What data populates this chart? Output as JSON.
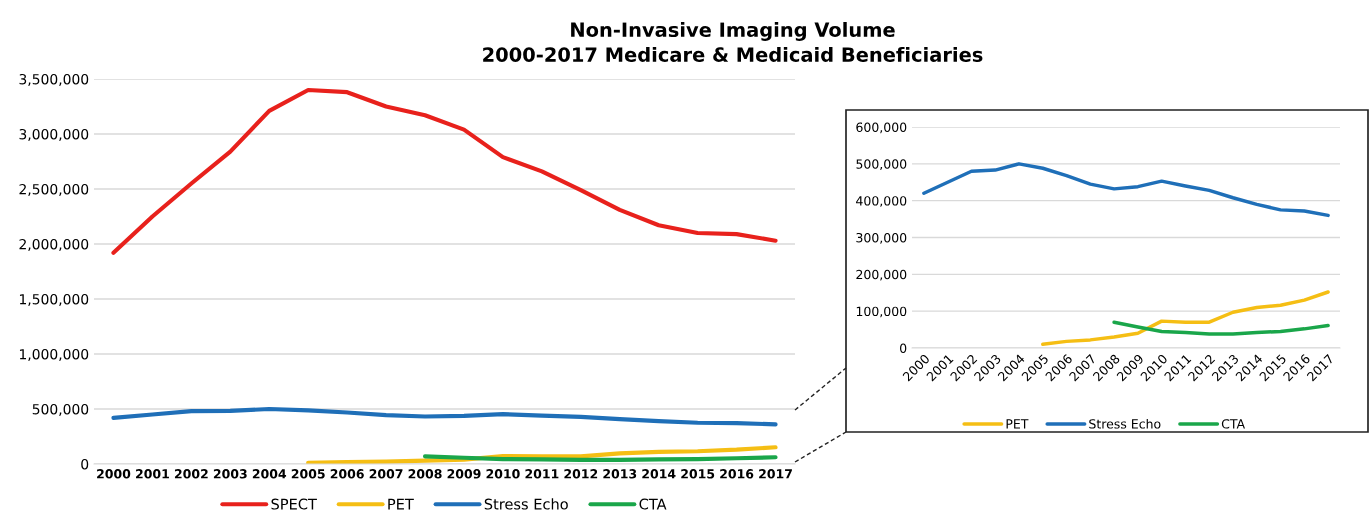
{
  "chart_data": [
    {
      "type": "line",
      "title": "Non-Invasive Imaging Volume\n2000-2017 Medicare & Medicaid Beneficiaries",
      "categories": [
        "2000",
        "2001",
        "2002",
        "2003",
        "2004",
        "2005",
        "2006",
        "2007",
        "2008",
        "2009",
        "2010",
        "2011",
        "2012",
        "2013",
        "2014",
        "2015",
        "2016",
        "2017"
      ],
      "series": [
        {
          "name": "SPECT",
          "color": "#e8211c",
          "values": [
            1920000,
            2250000,
            2550000,
            2840000,
            3210000,
            3400000,
            3380000,
            3250000,
            3170000,
            3040000,
            2790000,
            2660000,
            2490000,
            2310000,
            2170000,
            2100000,
            2090000,
            2030000
          ]
        },
        {
          "name": "PET",
          "color": "#f5be14",
          "values": [
            null,
            null,
            null,
            null,
            null,
            10000,
            18000,
            22000,
            30000,
            40000,
            73000,
            70000,
            70000,
            97000,
            110000,
            116000,
            130000,
            152000
          ]
        },
        {
          "name": "Stress Echo",
          "color": "#1f6fb8",
          "values": [
            420000,
            450000,
            480000,
            483000,
            500000,
            488000,
            468000,
            445000,
            432000,
            438000,
            453000,
            440000,
            428000,
            408000,
            390000,
            375000,
            372000,
            360000
          ]
        },
        {
          "name": "CTA",
          "color": "#1aa64a",
          "values": [
            null,
            null,
            null,
            null,
            null,
            null,
            null,
            null,
            70000,
            57000,
            45000,
            42000,
            38000,
            38000,
            42000,
            45000,
            52000,
            61000
          ]
        }
      ],
      "ylim": [
        0,
        3500000
      ],
      "yticks": [
        {
          "value": 0,
          "label": "0"
        },
        {
          "value": 500000,
          "label": "500,000"
        },
        {
          "value": 1000000,
          "label": "1,000,000"
        },
        {
          "value": 1500000,
          "label": "1,500,000"
        },
        {
          "value": 2000000,
          "label": "2,000,000"
        },
        {
          "value": 2500000,
          "label": "2,500,000"
        },
        {
          "value": 3000000,
          "label": "3,000,000"
        },
        {
          "value": 3500000,
          "label": "3,500,000"
        }
      ],
      "grid": "y",
      "legend": "bottom",
      "line_style": "solid",
      "marker": "none"
    },
    {
      "type": "line",
      "categories": [
        "2000",
        "2001",
        "2002",
        "2003",
        "2004",
        "2005",
        "2006",
        "2007",
        "2008",
        "2009",
        "2010",
        "2011",
        "2012",
        "2013",
        "2014",
        "2015",
        "2016",
        "2017"
      ],
      "series": [
        {
          "name": "PET",
          "color": "#f5be14",
          "values": [
            null,
            null,
            null,
            null,
            null,
            10000,
            18000,
            22000,
            30000,
            40000,
            73000,
            70000,
            70000,
            97000,
            110000,
            116000,
            130000,
            152000
          ]
        },
        {
          "name": "Stress Echo",
          "color": "#1f6fb8",
          "values": [
            420000,
            450000,
            480000,
            483000,
            500000,
            488000,
            468000,
            445000,
            432000,
            438000,
            453000,
            440000,
            428000,
            408000,
            390000,
            375000,
            372000,
            360000
          ]
        },
        {
          "name": "CTA",
          "color": "#1aa64a",
          "values": [
            null,
            null,
            null,
            null,
            null,
            null,
            null,
            null,
            70000,
            57000,
            45000,
            42000,
            38000,
            38000,
            42000,
            45000,
            52000,
            61000
          ]
        }
      ],
      "ylim": [
        0,
        600000
      ],
      "yticks": [
        {
          "value": 0,
          "label": "0"
        },
        {
          "value": 100000,
          "label": "100,000"
        },
        {
          "value": 200000,
          "label": "200,000"
        },
        {
          "value": 300000,
          "label": "300,000"
        },
        {
          "value": 400000,
          "label": "400,000"
        },
        {
          "value": 500000,
          "label": "500,000"
        },
        {
          "value": 600000,
          "label": "600,000"
        }
      ],
      "grid": "y",
      "legend": "bottom",
      "line_style": "solid",
      "marker": "none"
    }
  ]
}
